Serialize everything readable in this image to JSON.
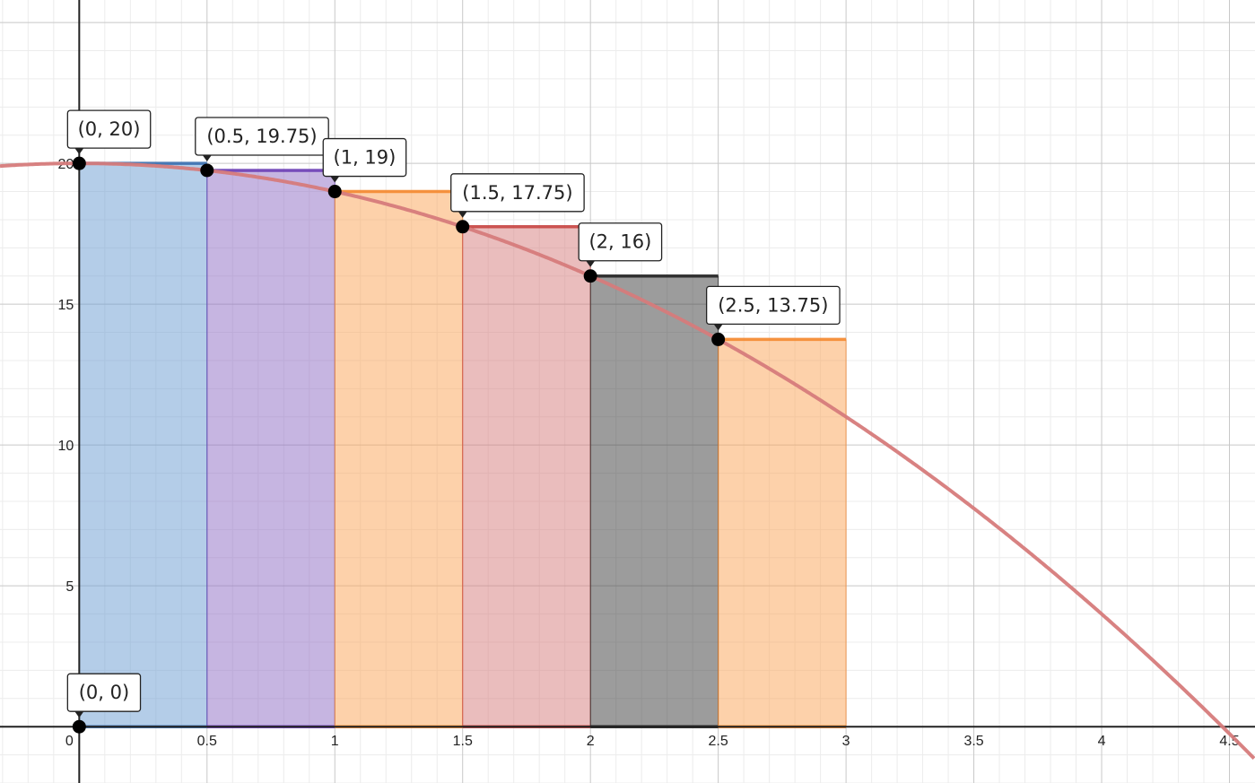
{
  "chart_data": {
    "type": "area",
    "curve": {
      "formula": "y = 20 - x^2"
    },
    "xlim": [
      -0.31,
      4.6
    ],
    "ylim": [
      -2,
      25.8
    ],
    "grid": true,
    "x_ticks": [
      "0",
      "0.5",
      "1",
      "1.5",
      "2",
      "2.5",
      "3",
      "3.5",
      "4",
      "4.5"
    ],
    "x_tick_values": [
      0,
      0.5,
      1,
      1.5,
      2,
      2.5,
      3,
      3.5,
      4,
      4.5
    ],
    "y_ticks": [
      "5",
      "10",
      "15",
      "20"
    ],
    "y_tick_values": [
      5,
      10,
      15,
      20
    ],
    "rectangles": [
      {
        "x0": 0,
        "x1": 0.5,
        "height": 20,
        "fill": "#6a9bd1",
        "stroke": "#3a6fb0"
      },
      {
        "x0": 0.5,
        "x1": 1,
        "height": 19.75,
        "fill": "#8e6cc4",
        "stroke": "#6a3db5"
      },
      {
        "x0": 1,
        "x1": 1.5,
        "height": 19,
        "fill": "#fca456",
        "stroke": "#f4882f"
      },
      {
        "x0": 1.5,
        "x1": 2,
        "height": 17.75,
        "fill": "#d67b7b",
        "stroke": "#c74440"
      },
      {
        "x0": 2,
        "x1": 2.5,
        "height": 16,
        "fill": "#3a3a3a",
        "stroke": "#222222"
      },
      {
        "x0": 2.5,
        "x1": 3,
        "height": 13.75,
        "fill": "#fca456",
        "stroke": "#f4882f"
      }
    ],
    "points": [
      {
        "x": 0,
        "y": 20,
        "label": "(0, 20)"
      },
      {
        "x": 0.5,
        "y": 19.75,
        "label": "(0.5, 19.75)"
      },
      {
        "x": 1,
        "y": 19,
        "label": "(1, 19)"
      },
      {
        "x": 1.5,
        "y": 17.75,
        "label": "(1.5, 17.75)"
      },
      {
        "x": 2,
        "y": 16,
        "label": "(2, 16)"
      },
      {
        "x": 2.5,
        "y": 13.75,
        "label": "(2.5, 13.75)"
      },
      {
        "x": 0,
        "y": 0,
        "label": "(0, 0)"
      }
    ],
    "colors": {
      "curve": "#d67b7b",
      "axis": "#222222",
      "grid_major": "#c8c8c8",
      "grid_minor": "#ececec"
    }
  }
}
